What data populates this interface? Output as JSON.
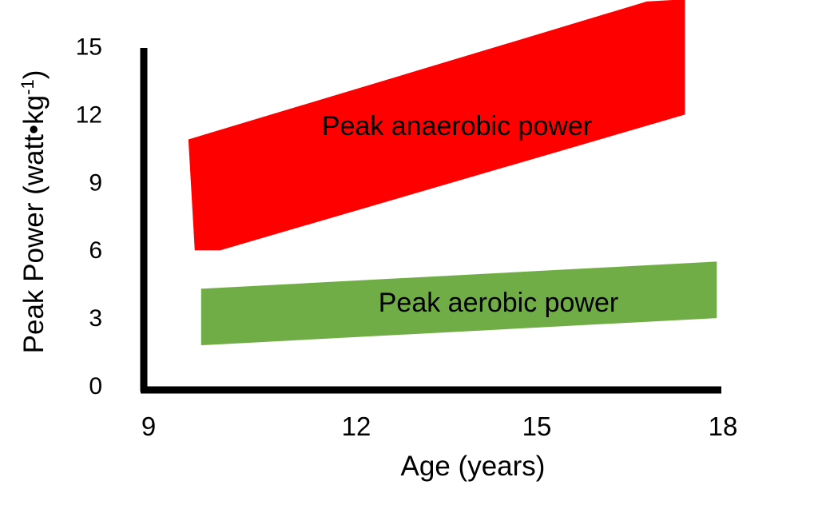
{
  "chart_data": {
    "type": "area",
    "title": "",
    "xlabel": "Age (years)",
    "ylabel": "Peak Power (watt•kg",
    "ylabel_superscript": "-1",
    "ylabel_close": ")",
    "xlim": [
      9,
      18
    ],
    "ylim": [
      0,
      15
    ],
    "xticks": [
      "9",
      "12",
      "15",
      "18"
    ],
    "yticks": [
      "0",
      "3",
      "6",
      "9",
      "12",
      "15"
    ],
    "grid": false,
    "series": [
      {
        "name": "Peak anaerobic power",
        "color": "#ff0000",
        "polygon": [
          [
            9.6,
            10.9
          ],
          [
            16.8,
            17.0
          ],
          [
            17.4,
            17.1
          ],
          [
            17.4,
            12.0
          ],
          [
            10.1,
            6.0
          ],
          [
            9.7,
            6.0
          ]
        ]
      },
      {
        "name": "Peak aerobic power",
        "color": "#70ad47",
        "polygon": [
          [
            9.8,
            4.3
          ],
          [
            17.9,
            5.5
          ],
          [
            17.9,
            3.0
          ],
          [
            9.8,
            1.8
          ]
        ]
      }
    ]
  }
}
